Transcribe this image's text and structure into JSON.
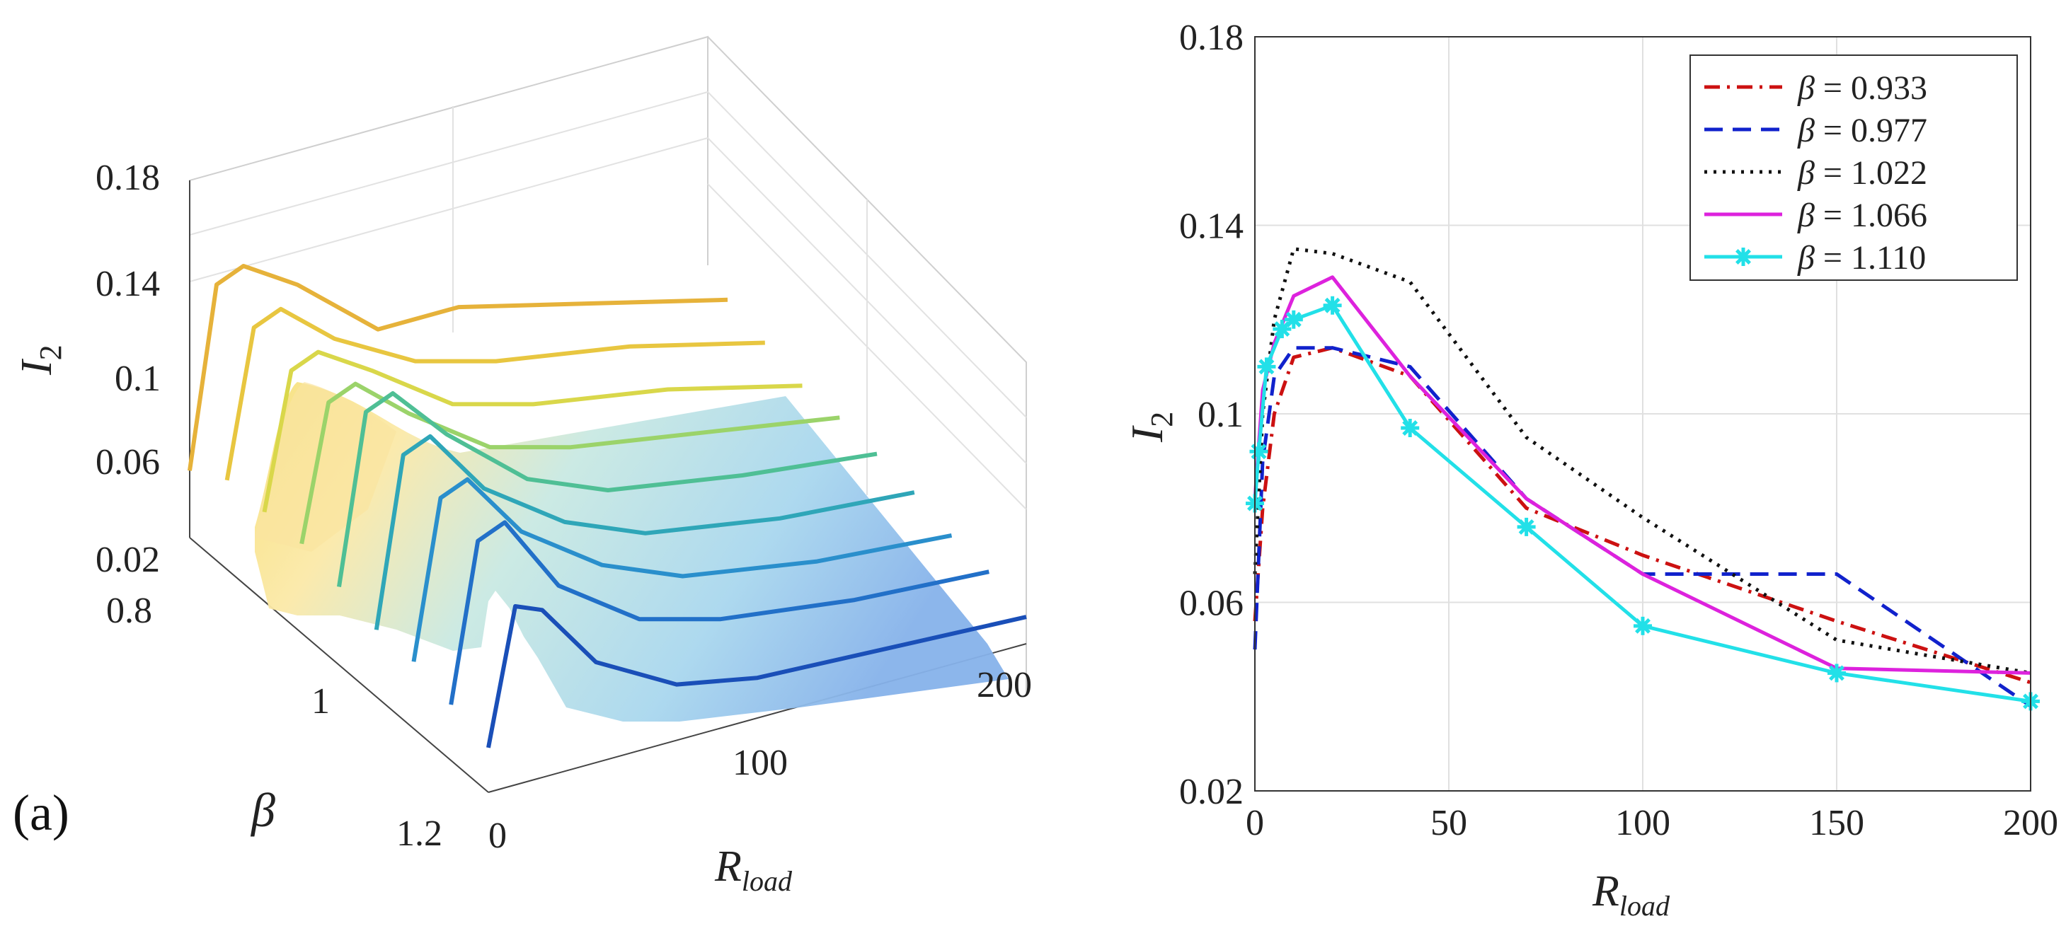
{
  "panel_a": {
    "label": "(a)",
    "zlabel_main": "I",
    "zlabel_sub": "2",
    "xlabel_main": "R",
    "xlabel_sub": "load",
    "ylabel": "β"
  },
  "chart_data": [
    {
      "type": "surface",
      "title": "",
      "xlabel": "R_load",
      "ylabel": "β",
      "zlabel": "I_2",
      "x_ticks": [
        "0",
        "100",
        "200"
      ],
      "y_ticks": [
        "0.8",
        "1",
        "1.2"
      ],
      "z_ticks": [
        "0.02",
        "0.06",
        "0.1",
        "0.14",
        "0.18"
      ],
      "xlim": [
        0,
        200
      ],
      "ylim": [
        0.8,
        1.2
      ],
      "zlim": [
        0.02,
        0.18
      ],
      "x": [
        0,
        10,
        20,
        40,
        70,
        100,
        150,
        200
      ],
      "beta": [
        0.8,
        0.85,
        0.9,
        0.95,
        1.0,
        1.05,
        1.1,
        1.15,
        1.2
      ],
      "z": [
        [
          0.05,
          0.13,
          0.135,
          0.12,
          0.09,
          0.09,
          0.075,
          0.06
        ],
        [
          0.06,
          0.125,
          0.13,
          0.11,
          0.09,
          0.08,
          0.07,
          0.055
        ],
        [
          0.06,
          0.12,
          0.125,
          0.11,
          0.085,
          0.075,
          0.065,
          0.05
        ],
        [
          0.06,
          0.12,
          0.125,
          0.105,
          0.08,
          0.07,
          0.06,
          0.05
        ],
        [
          0.055,
          0.13,
          0.135,
          0.11,
          0.08,
          0.065,
          0.055,
          0.048
        ],
        [
          0.05,
          0.125,
          0.13,
          0.1,
          0.075,
          0.06,
          0.05,
          0.045
        ],
        [
          0.05,
          0.12,
          0.125,
          0.095,
          0.07,
          0.055,
          0.045,
          0.04
        ],
        [
          0.045,
          0.115,
          0.12,
          0.085,
          0.06,
          0.05,
          0.042,
          0.038
        ],
        [
          0.04,
          0.1,
          0.095,
          0.065,
          0.045,
          0.038,
          0.035,
          0.032
        ]
      ]
    },
    {
      "type": "line",
      "title": "",
      "xlabel": "R_load",
      "ylabel": "I_2",
      "xlabel_main": "R",
      "xlabel_sub": "load",
      "ylabel_main": "I",
      "ylabel_sub": "2",
      "xlim": [
        0,
        200
      ],
      "ylim": [
        0.02,
        0.18
      ],
      "x_ticks": [
        0,
        50,
        100,
        150,
        200
      ],
      "y_ticks": [
        0.02,
        0.06,
        0.1,
        0.14,
        0.18
      ],
      "x_tick_labels": [
        "0",
        "50",
        "100",
        "150",
        "200"
      ],
      "y_tick_labels": [
        "0.02",
        "0.06",
        "0.1",
        "0.14",
        "0.18"
      ],
      "grid": true,
      "legend_position": "top-right",
      "series": [
        {
          "name": "β = 0.933",
          "legend_symbol": "β",
          "legend_value": " = 0.933",
          "color": "#cc1111",
          "dash": "dashdot",
          "marker": "none",
          "x": [
            0,
            2,
            5,
            10,
            20,
            40,
            70,
            100,
            150,
            200
          ],
          "y": [
            0.056,
            0.08,
            0.1,
            0.112,
            0.114,
            0.108,
            0.08,
            0.07,
            0.056,
            0.043
          ]
        },
        {
          "name": "β = 0.977",
          "legend_symbol": "β",
          "legend_value": " = 0.977",
          "color": "#1122cc",
          "dash": "dashed",
          "marker": "none",
          "x": [
            0,
            2,
            5,
            10,
            20,
            40,
            70,
            100,
            150,
            200
          ],
          "y": [
            0.05,
            0.09,
            0.108,
            0.114,
            0.114,
            0.11,
            0.082,
            0.066,
            0.066,
            0.038
          ]
        },
        {
          "name": "β = 1.022",
          "legend_symbol": "β",
          "legend_value": " = 1.022",
          "color": "#111111",
          "dash": "dotted",
          "marker": "none",
          "x": [
            0,
            2,
            5,
            10,
            20,
            40,
            70,
            100,
            150,
            200
          ],
          "y": [
            0.066,
            0.1,
            0.12,
            0.135,
            0.134,
            0.128,
            0.095,
            0.078,
            0.052,
            0.045
          ]
        },
        {
          "name": "β = 1.066",
          "legend_symbol": "β",
          "legend_value": " = 1.066",
          "color": "#dd22dd",
          "dash": "solid",
          "marker": "none",
          "x": [
            0,
            2,
            5,
            10,
            20,
            40,
            70,
            100,
            150,
            200
          ],
          "y": [
            0.082,
            0.105,
            0.115,
            0.125,
            0.129,
            0.108,
            0.082,
            0.066,
            0.046,
            0.045
          ]
        },
        {
          "name": "β = 1.110",
          "legend_symbol": "β",
          "legend_value": " = 1.110",
          "color": "#22e0e8",
          "dash": "solid",
          "marker": "asterisk",
          "x": [
            0,
            1,
            3,
            7,
            10,
            20,
            40,
            70,
            100,
            150,
            200
          ],
          "y": [
            0.081,
            0.092,
            0.11,
            0.118,
            0.12,
            0.123,
            0.097,
            0.076,
            0.055,
            0.045,
            0.039
          ]
        }
      ]
    }
  ]
}
